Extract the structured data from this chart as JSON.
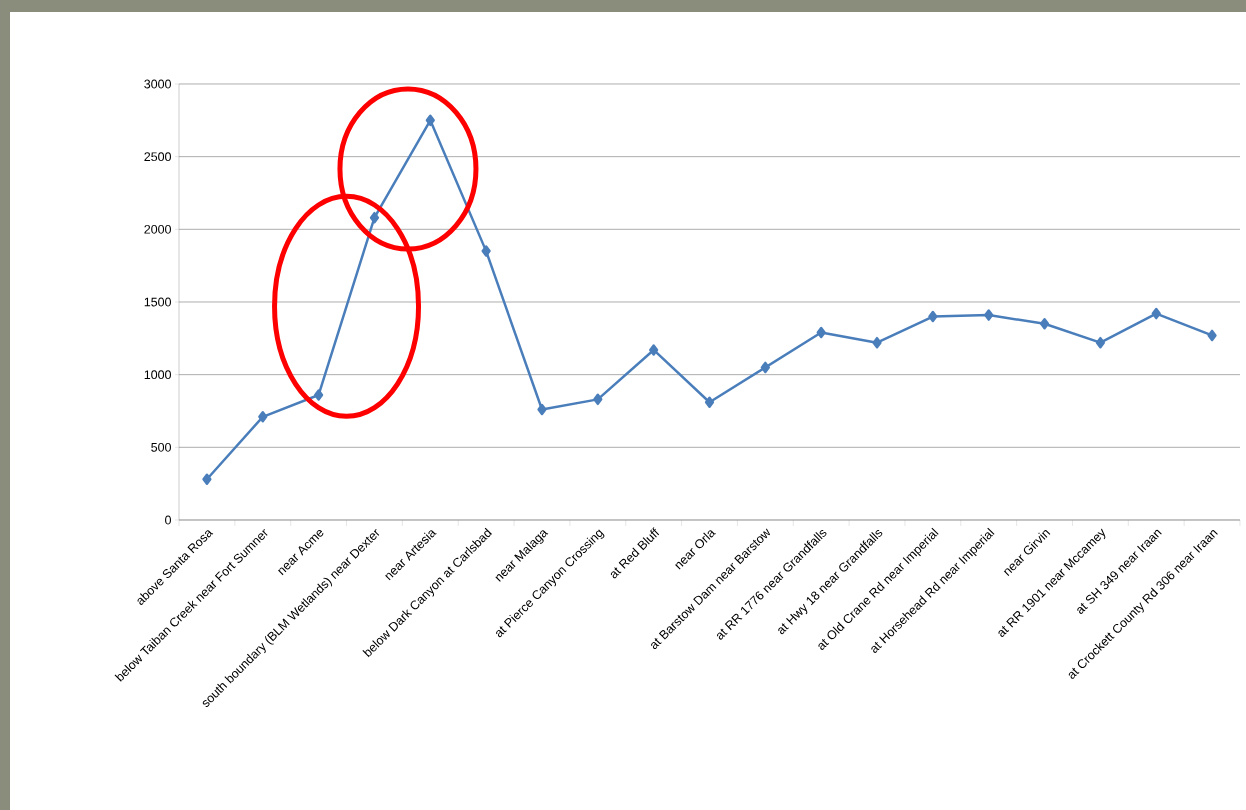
{
  "chart_data": {
    "type": "line",
    "categories": [
      "above Santa Rosa",
      "below Taiban Creek near Fort Sumner",
      "near Acme",
      "south boundary (BLM Wetlands) near Dexter",
      "near Artesia",
      "below Dark Canyon at Carlsbad",
      "near Malaga",
      "at Pierce Canyon Crossing",
      "at Red Bluff",
      "near Orla",
      "at Barstow Dam near Barstow",
      "at RR 1776 near Grandfalls",
      "at Hwy 18 near Grandfalls",
      "at Old Crane Rd near Imperial",
      "at Horsehead Rd near Imperial",
      "near Girvin",
      "at RR 1901 near Mccamey",
      "at SH 349 near Iraan",
      "at Crockett County Rd 306 near Iraan"
    ],
    "values": [
      280,
      710,
      860,
      2080,
      2750,
      1850,
      760,
      830,
      1170,
      810,
      1050,
      1290,
      1220,
      1400,
      1410,
      1350,
      1220,
      1420,
      1270
    ],
    "color": "#4a7ebb",
    "ylim": [
      0,
      3000
    ],
    "yticks": [
      0,
      500,
      1000,
      1500,
      2000,
      2500,
      3000
    ],
    "grid": "y",
    "marker": "diamond"
  }
}
